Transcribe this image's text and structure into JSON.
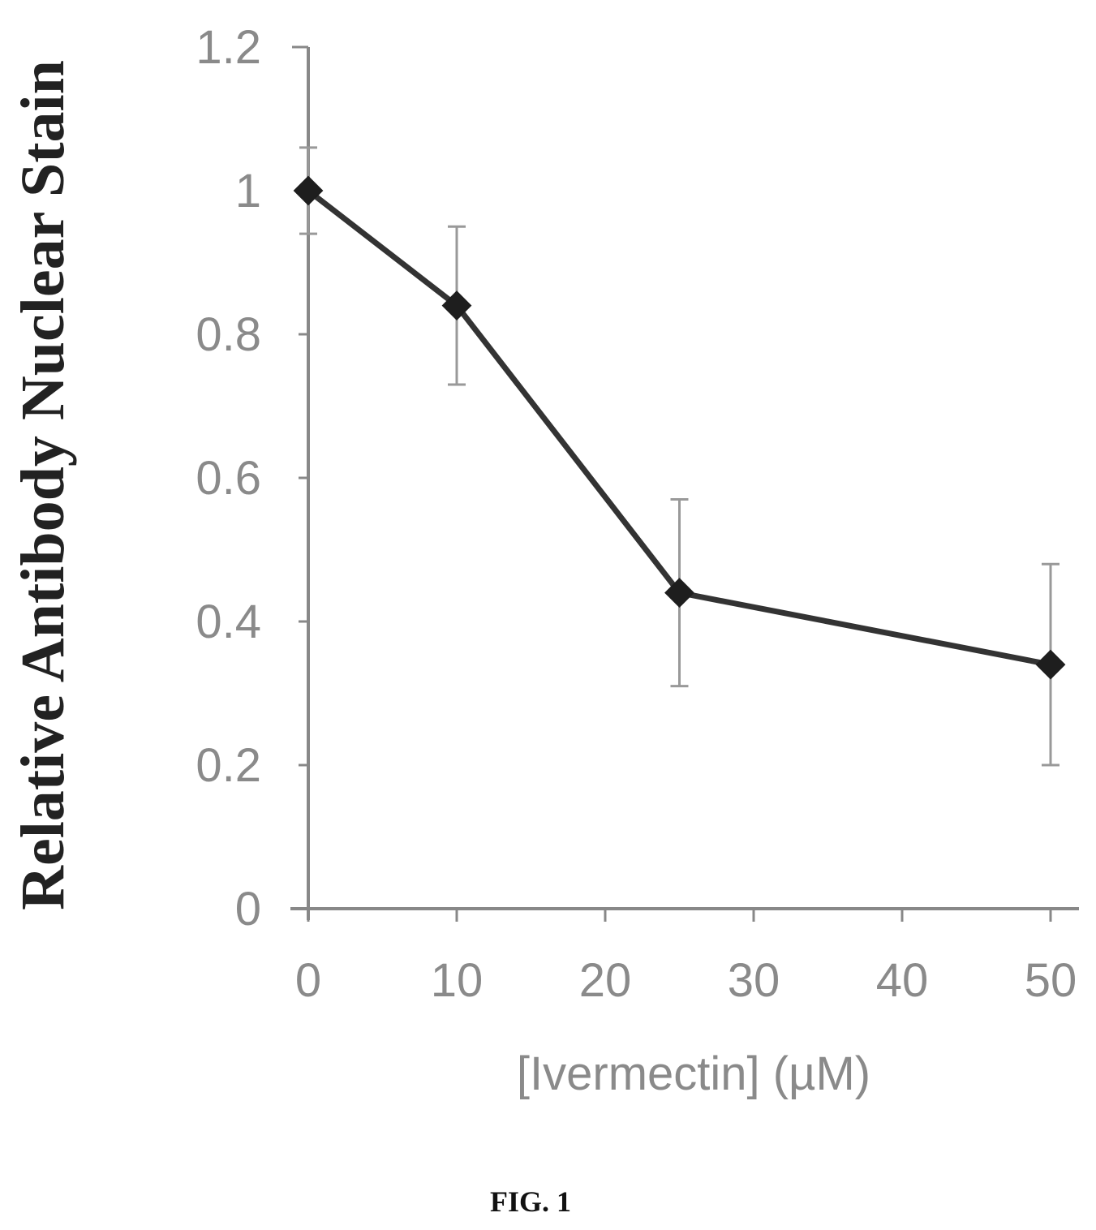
{
  "chart_data": {
    "type": "line",
    "x": [
      0,
      10,
      25,
      50
    ],
    "series": [
      {
        "values": [
          1.0,
          0.84,
          0.44,
          0.34
        ],
        "errors": [
          0.06,
          0.11,
          0.13,
          0.14
        ]
      }
    ],
    "xlabel": "[Ivermectin] (µM)",
    "ylabel": "Relative Antibody Nuclear Stain",
    "xlim": [
      0,
      50
    ],
    "ylim": [
      0,
      1.2
    ],
    "x_ticks": [
      0,
      10,
      20,
      30,
      40,
      50
    ],
    "y_ticks": [
      0,
      0.2,
      0.4,
      0.6,
      0.8,
      1,
      1.2
    ],
    "grid": false,
    "marker": "diamond",
    "line_color": "#333333",
    "axis_color": "#888888"
  },
  "caption": "FIG. 1"
}
